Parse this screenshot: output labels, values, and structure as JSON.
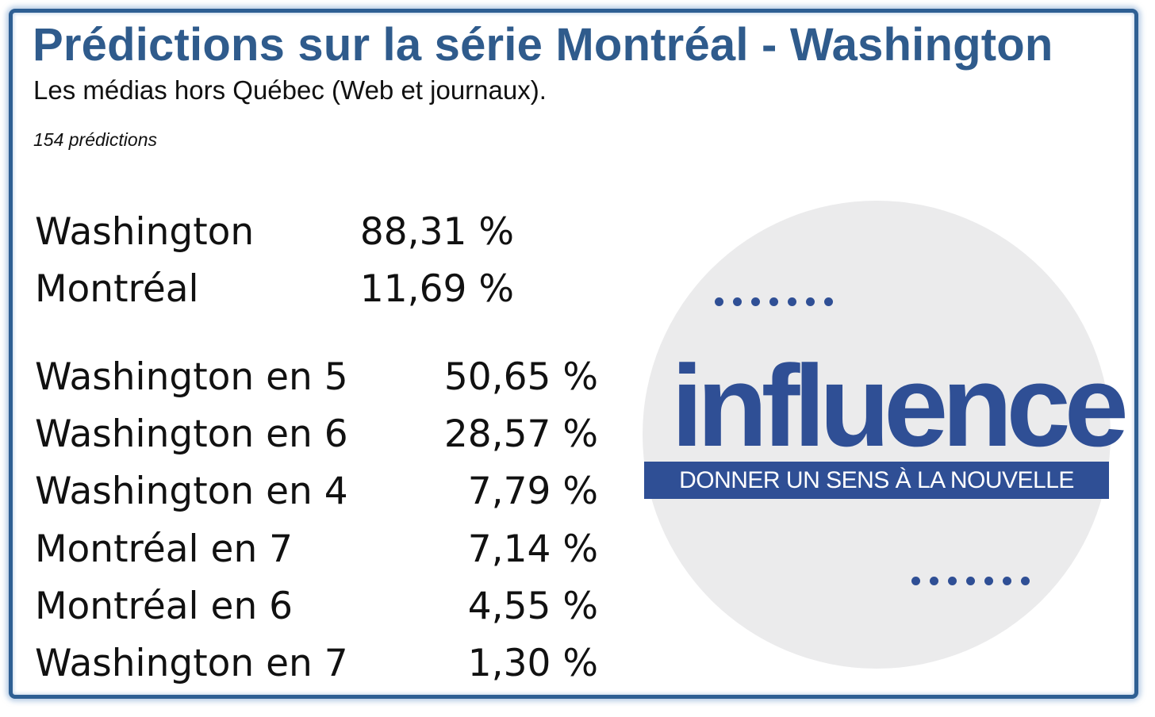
{
  "header": {
    "title": "Prédictions sur la série Montréal - Washington",
    "subtitle": "Les médias hors Québec (Web et journaux).",
    "count": "154 prédictions"
  },
  "winner": [
    {
      "label": "Washington",
      "value": "88,31 %"
    },
    {
      "label": "Montréal",
      "value": "11,69 %"
    }
  ],
  "series_outcomes": [
    {
      "label": "Washington en 5",
      "value": "50,65 %"
    },
    {
      "label": "Washington en 6",
      "value": "28,57 %"
    },
    {
      "label": "Washington en 4",
      "value": "7,79 %"
    },
    {
      "label": "Montréal en 7",
      "value": "7,14 %"
    },
    {
      "label": "Montréal en 6",
      "value": "4,55 %"
    },
    {
      "label": "Washington en 7",
      "value": "1,30 %"
    }
  ],
  "logo": {
    "word": "influence",
    "tagline": "DONNER UN SENS À LA NOUVELLE",
    "colors": {
      "brand_blue": "#2f4f95",
      "circle": "#ebebec"
    }
  },
  "colors": {
    "title": "#2f5b8c",
    "frame": "#2e5f93",
    "text": "#111111"
  }
}
